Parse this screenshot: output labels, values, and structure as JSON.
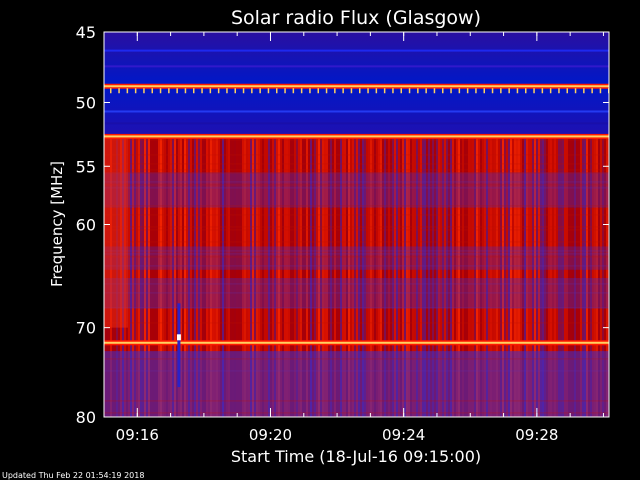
{
  "chart_data": {
    "type": "heatmap",
    "title": "Solar radio Flux (Glasgow)",
    "xlabel": "Start Time (18-Jul-16 09:15:00)",
    "ylabel": "Frequency [MHz]",
    "y_scale": "log",
    "y_range_mhz": [
      45,
      80
    ],
    "y_ticks": [
      {
        "label": "45",
        "value": 45
      },
      {
        "label": "50",
        "value": 50
      },
      {
        "label": "55",
        "value": 55
      },
      {
        "label": "60",
        "value": 60
      },
      {
        "label": "70",
        "value": 70
      },
      {
        "label": "80",
        "value": 80
      }
    ],
    "x_range": [
      "09:15:00",
      "09:30:10"
    ],
    "x_ticks": [
      {
        "label": "09:16",
        "value": "09:16:00"
      },
      {
        "label": "09:20",
        "value": "09:20:00"
      },
      {
        "label": "09:24",
        "value": "09:24:00"
      },
      {
        "label": "09:28",
        "value": "09:28:00"
      }
    ],
    "intensity_colors": {
      "low": "#00008c",
      "mid_low": "#3c2fd2",
      "mid": "#b00000",
      "high": "#ff1a00",
      "peak": "#ffd060",
      "max": "#ffffff"
    },
    "bands": [
      {
        "from_mhz": 45,
        "to_mhz": 52.6,
        "level": "low"
      },
      {
        "from_mhz": 52.6,
        "to_mhz": 80,
        "level": "high"
      }
    ],
    "interference_lines_mhz": [
      48.8,
      52.6,
      71.6
    ],
    "markers": [
      {
        "label": "09:17:15",
        "value": "09:17:15"
      }
    ]
  },
  "footer": {
    "updated": "Updated Thu Feb 22 01:54:19 2018"
  }
}
